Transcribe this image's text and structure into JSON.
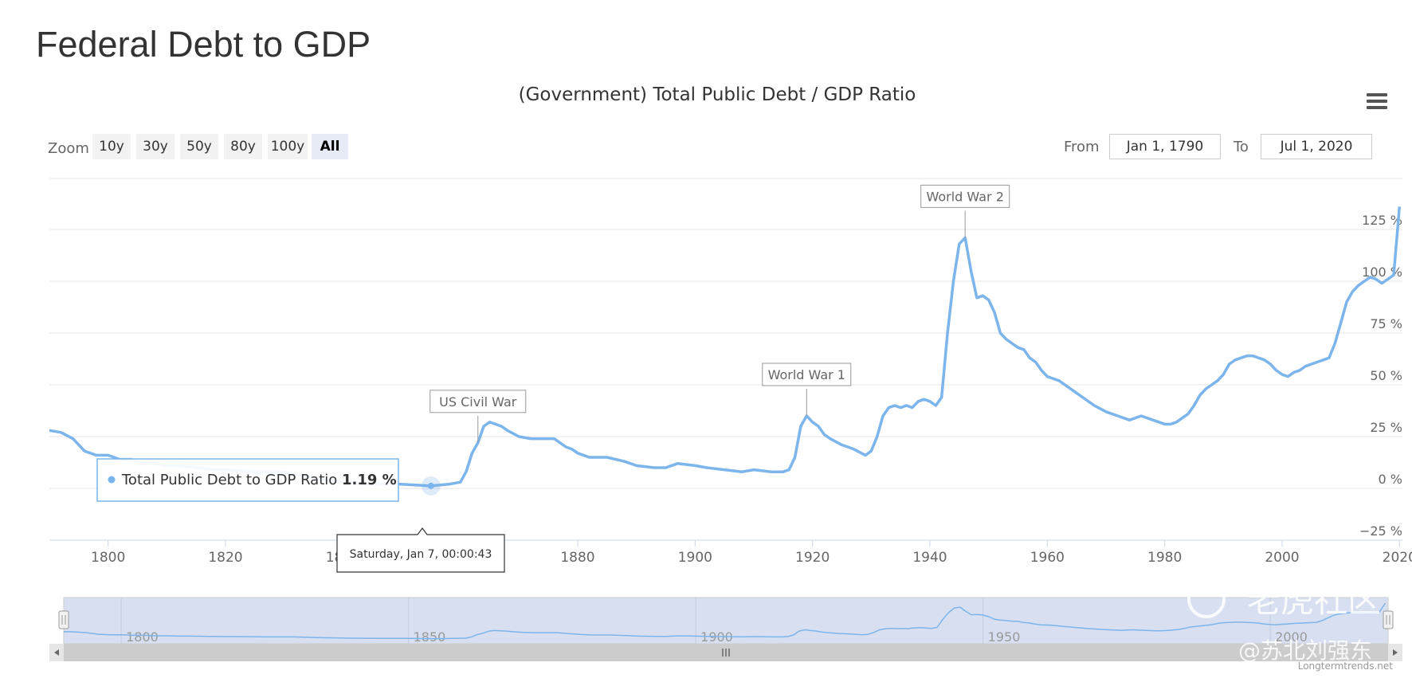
{
  "page_title": "Federal Debt to GDP",
  "chart_title": "(Government) Total Public Debt / GDP Ratio",
  "menu_icon": "hamburger-menu-icon",
  "zoom": {
    "label": "Zoom",
    "buttons": [
      "10y",
      "30y",
      "50y",
      "80y",
      "100y",
      "All"
    ],
    "active": "All"
  },
  "range": {
    "from_label": "From",
    "from_value": "Jan 1, 1790",
    "to_label": "To",
    "to_value": "Jul 1, 2020"
  },
  "tooltip": {
    "series_name": "Total Public Debt to GDP Ratio",
    "value": "1.19 %",
    "date": "Saturday, Jan 7, 00:00:43"
  },
  "watermark": {
    "site": "老虎社区",
    "handle": "@苏北刘强东"
  },
  "credit": "Longtermtrends.net",
  "colors": {
    "series": "#7cb5ec",
    "navigator_fill": "#d4dcf0"
  },
  "chart_data": {
    "type": "line",
    "title": "(Government) Total Public Debt / GDP Ratio",
    "series": [
      {
        "name": "Total Public Debt to GDP Ratio",
        "x": [
          1790,
          1792,
          1794,
          1796,
          1798,
          1800,
          1802,
          1804,
          1806,
          1808,
          1810,
          1812,
          1815,
          1818,
          1820,
          1825,
          1830,
          1835,
          1840,
          1845,
          1850,
          1855,
          1858,
          1860,
          1861,
          1862,
          1863,
          1864,
          1865,
          1866,
          1867,
          1868,
          1870,
          1872,
          1874,
          1876,
          1878,
          1879,
          1880,
          1882,
          1885,
          1888,
          1890,
          1893,
          1895,
          1897,
          1900,
          1902,
          1905,
          1908,
          1910,
          1913,
          1915,
          1916,
          1917,
          1918,
          1919,
          1920,
          1921,
          1922,
          1923,
          1925,
          1927,
          1929,
          1930,
          1931,
          1932,
          1933,
          1934,
          1935,
          1936,
          1937,
          1938,
          1939,
          1940,
          1941,
          1942,
          1943,
          1944,
          1945,
          1946,
          1947,
          1948,
          1949,
          1950,
          1951,
          1952,
          1953,
          1954,
          1955,
          1956,
          1957,
          1958,
          1959,
          1960,
          1962,
          1964,
          1966,
          1968,
          1970,
          1972,
          1974,
          1976,
          1978,
          1980,
          1981,
          1982,
          1983,
          1984,
          1985,
          1986,
          1987,
          1988,
          1989,
          1990,
          1991,
          1992,
          1993,
          1994,
          1995,
          1996,
          1997,
          1998,
          1999,
          2000,
          2001,
          2002,
          2003,
          2004,
          2005,
          2006,
          2007,
          2008,
          2009,
          2010,
          2011,
          2012,
          2013,
          2014,
          2015,
          2016,
          2017,
          2018,
          2019,
          2020
        ],
        "y": [
          28,
          27,
          24,
          18,
          16,
          16,
          14,
          14,
          12,
          12,
          11,
          11,
          10,
          9,
          9,
          8,
          8,
          5,
          3,
          2,
          2,
          1.19,
          2,
          3,
          8,
          17,
          22,
          30,
          32,
          31,
          30,
          28,
          25,
          24,
          24,
          24,
          20,
          19,
          17,
          15,
          15,
          13,
          11,
          10,
          10,
          12,
          11,
          10,
          9,
          8,
          9,
          8,
          8,
          9,
          15,
          30,
          35,
          32,
          30,
          26,
          24,
          21,
          19,
          16,
          18,
          25,
          35,
          39,
          40,
          39,
          40,
          39,
          42,
          43,
          42,
          40,
          44,
          75,
          100,
          118,
          121,
          105,
          92,
          93,
          91,
          85,
          75,
          72,
          70,
          68,
          67,
          63,
          61,
          57,
          54,
          52,
          48,
          44,
          40,
          37,
          35,
          33,
          35,
          33,
          31,
          31,
          32,
          34,
          36,
          40,
          45,
          48,
          50,
          52,
          55,
          60,
          62,
          63,
          64,
          64,
          63,
          62,
          60,
          57,
          55,
          54,
          56,
          57,
          59,
          60,
          61,
          62,
          63,
          70,
          80,
          90,
          95,
          98,
          100,
          102,
          101,
          99,
          101,
          103,
          136
        ]
      }
    ],
    "annotations": [
      {
        "x": 1863,
        "label": "US Civil War"
      },
      {
        "x": 1919,
        "label": "World War 1"
      },
      {
        "x": 1946,
        "label": "World War 2"
      }
    ],
    "xticks": [
      1800,
      1820,
      1840,
      1860,
      1880,
      1900,
      1920,
      1940,
      1960,
      1980,
      2000,
      2020
    ],
    "navigator_ticks": [
      1800,
      1850,
      1900,
      1950,
      2000
    ],
    "yticks": [
      "125 %",
      "100 %",
      "75 %",
      "50 %",
      "25 %",
      "0 %",
      "−25 %"
    ],
    "ytick_values": [
      125,
      100,
      75,
      50,
      25,
      0,
      -25
    ],
    "xlim": [
      1790,
      2020.5
    ],
    "ylim": [
      -25,
      150
    ],
    "grid": true,
    "legend": "none"
  }
}
